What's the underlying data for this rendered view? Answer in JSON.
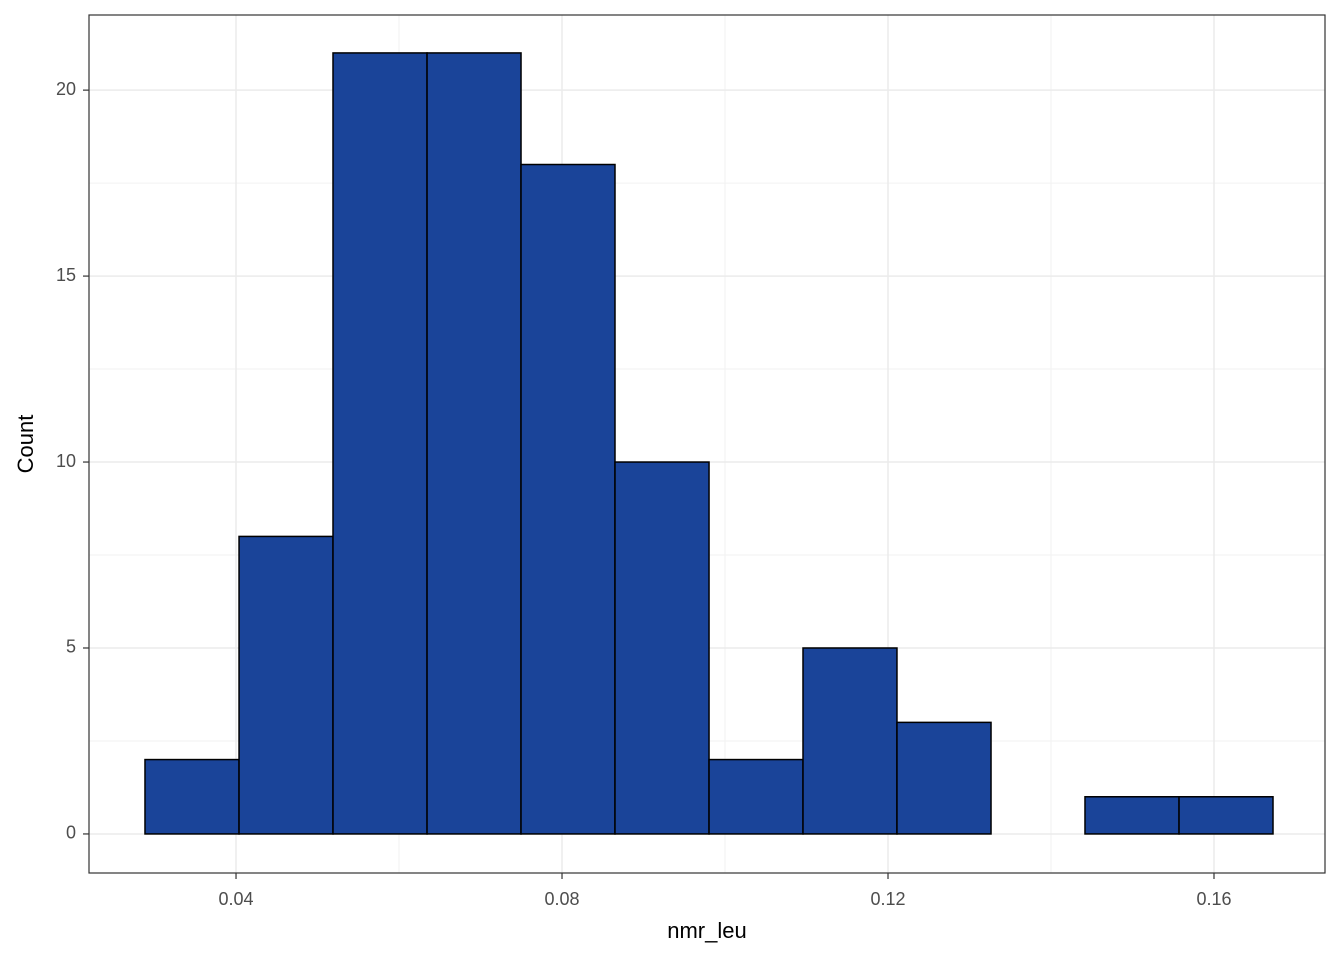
{
  "chart_data": {
    "type": "histogram",
    "x_label": "nmr_leu",
    "y_label": "Count",
    "bins": [
      0.02883,
      0.04037,
      0.0519,
      0.06344,
      0.07497,
      0.0865,
      0.09804,
      0.10957,
      0.1211,
      0.13264,
      0.14417,
      0.15571,
      0.16724
    ],
    "values": [
      2,
      8,
      21,
      21,
      18,
      10,
      2,
      5,
      3,
      0,
      1,
      1
    ],
    "color": "#1a4499",
    "edge_color": "#000000",
    "xlim": [
      0.02196,
      0.17362
    ],
    "xticks": [
      0.04,
      0.08,
      0.12,
      0.16
    ],
    "ylim": [
      -1.05,
      22.02
    ],
    "yticks": [
      0,
      5,
      10,
      15,
      20
    ],
    "grid": true
  }
}
